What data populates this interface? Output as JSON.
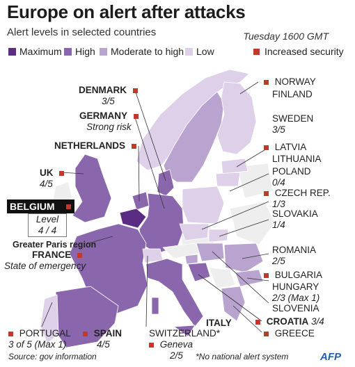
{
  "title": "Europe on alert after attacks",
  "subtitle": "Alert levels in selected countries",
  "timestamp": "Tuesday 1600 GMT",
  "legend": {
    "maximum": "Maximum",
    "high": "High",
    "moderate_high": "Moderate to high",
    "low": "Low",
    "increased_security": "Increased security"
  },
  "colors": {
    "maximum": "#5b2c83",
    "high": "#8a66ad",
    "moderate_high": "#b9a4cf",
    "low": "#ddd0e8",
    "increased_security": "#c0392b",
    "non_selected": "#eeeeee"
  },
  "countries": {
    "norway": {
      "name": "NORWAY"
    },
    "finland": {
      "name": "FINLAND"
    },
    "sweden": {
      "name": "SWEDEN",
      "level": "3/5"
    },
    "latvia": {
      "name": "LATVIA"
    },
    "lithuania": {
      "name": "LITHUANIA"
    },
    "poland": {
      "name": "POLAND",
      "level": "0/4"
    },
    "czech": {
      "name": "CZECH REP.",
      "level": "1/3"
    },
    "slovakia": {
      "name": "SLOVAKIA",
      "level": "1/4"
    },
    "romania": {
      "name": "ROMANIA",
      "level": "2/5"
    },
    "bulgaria": {
      "name": "BULGARIA"
    },
    "hungary": {
      "name": "HUNGARY",
      "level": "2/3 (Max 1)"
    },
    "slovenia": {
      "name": "SLOVENIA"
    },
    "croatia": {
      "name": "CROATIA",
      "level": "3/4"
    },
    "greece": {
      "name": "GREECE"
    },
    "denmark": {
      "name": "DENMARK",
      "level": "3/5"
    },
    "germany": {
      "name": "GERMANY",
      "level": "Strong risk"
    },
    "netherlands": {
      "name": "NETHERLANDS"
    },
    "uk": {
      "name": "UK",
      "level": "4/5"
    },
    "belgium": {
      "name": "BELGIUM",
      "level_label": "Level",
      "level": "4 / 4"
    },
    "france": {
      "region": "Greater Paris region",
      "name": "FRANCE",
      "level": "State of emergency"
    },
    "portugal": {
      "name": "PORTUGAL",
      "level": "3 of 5 (Max 1)"
    },
    "spain": {
      "name": "SPAIN",
      "level": "4/5"
    },
    "switzerland": {
      "name": "SWITZERLAND*",
      "city": "Geneva",
      "level": "2/5"
    },
    "italy": {
      "name": "ITALY"
    }
  },
  "source": "Source: gov information",
  "note": "*No national alert system",
  "credit": "AFP"
}
